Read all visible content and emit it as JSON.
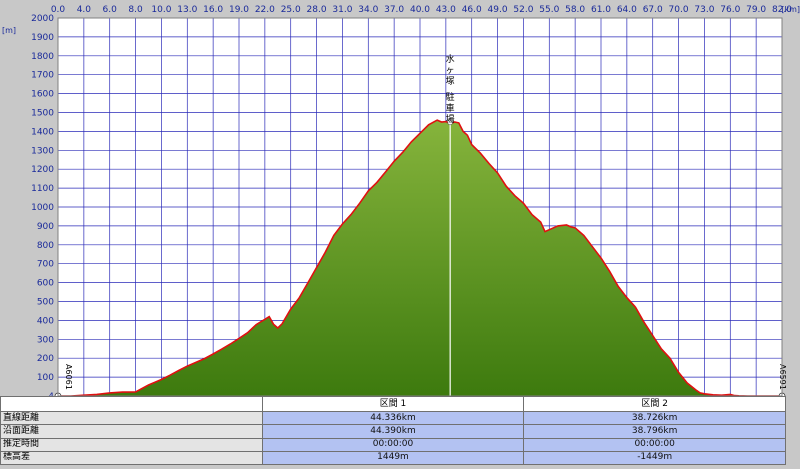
{
  "chart_data": {
    "type": "area",
    "xlim": [
      0,
      82
    ],
    "ylim": [
      4,
      2000
    ],
    "x_ticks": [
      "0.0",
      "4.0",
      "6.0",
      "8.0",
      "10.0",
      "13.0",
      "16.0",
      "19.0",
      "22.0",
      "25.0",
      "28.0",
      "31.0",
      "34.0",
      "37.0",
      "40.0",
      "43.0",
      "46.0",
      "49.0",
      "52.0",
      "55.0",
      "58.0",
      "61.0",
      "64.0",
      "67.0",
      "70.0",
      "73.0",
      "76.0",
      "79.0",
      "82.0"
    ],
    "x_tick_values": [
      0,
      4,
      6,
      8,
      10,
      13,
      16,
      19,
      22,
      25,
      28,
      31,
      34,
      37,
      40,
      43,
      46,
      49,
      52,
      55,
      58,
      61,
      64,
      67,
      70,
      73,
      76,
      79,
      82
    ],
    "x_unit": "[km]",
    "y_ticks": [
      4,
      100,
      200,
      300,
      400,
      500,
      600,
      700,
      800,
      900,
      1000,
      1100,
      1200,
      1300,
      1400,
      1500,
      1600,
      1700,
      1800,
      1900,
      2000
    ],
    "y_unit": "[m]",
    "grid": true,
    "colors": {
      "fill_top": "#7fae34",
      "fill_bottom": "#3f7d10",
      "line": "#e01010",
      "grid": "#2a2ab8",
      "marker": "#ffffff"
    },
    "series": [
      {
        "x": [
          0,
          2,
          4,
          5,
          6,
          7,
          8,
          9,
          10,
          11,
          12,
          13,
          14,
          15,
          16,
          17,
          18,
          19,
          20,
          21,
          22,
          22.5,
          23,
          23.5,
          24,
          25,
          26,
          27,
          28,
          29,
          30,
          31,
          32,
          33,
          34,
          35,
          36,
          37,
          38,
          39,
          40,
          41,
          42,
          42.5,
          43,
          43.5,
          44,
          44.5,
          45,
          45.5,
          46,
          47,
          48,
          49,
          50,
          51,
          52,
          53,
          54,
          54.5,
          55,
          56,
          57,
          57.5,
          58,
          59,
          60,
          61,
          62,
          63,
          64,
          65,
          66,
          67,
          68,
          69,
          70,
          71,
          72,
          72.5,
          73,
          74,
          75,
          76,
          76.5,
          77,
          78,
          79,
          80,
          81,
          82
        ],
        "y": [
          4,
          4,
          8,
          12,
          20,
          24,
          25,
          60,
          88,
          110,
          135,
          158,
          178,
          198,
          222,
          248,
          275,
          305,
          335,
          378,
          406,
          420,
          380,
          360,
          382,
          460,
          520,
          600,
          680,
          760,
          850,
          910,
          960,
          1020,
          1085,
          1130,
          1185,
          1242,
          1290,
          1345,
          1390,
          1435,
          1460,
          1450,
          1452,
          1440,
          1450,
          1445,
          1400,
          1380,
          1330,
          1285,
          1230,
          1180,
          1110,
          1060,
          1020,
          960,
          920,
          870,
          880,
          900,
          905,
          895,
          890,
          850,
          790,
          730,
          660,
          580,
          520,
          470,
          390,
          320,
          250,
          200,
          125,
          70,
          35,
          20,
          15,
          10,
          8,
          12,
          6,
          5,
          4,
          4,
          4,
          4,
          4
        ]
      }
    ],
    "waypoints": [
      {
        "x": 43.5,
        "label": "水ヶ塚駐車場"
      }
    ],
    "start_label": "A6061",
    "end_label": "A6591"
  },
  "table": {
    "sections": [
      "区間 1",
      "区間 2"
    ],
    "rows": [
      {
        "label": "直線距離",
        "values": [
          "44.336km",
          "38.726km"
        ]
      },
      {
        "label": "沿面距離",
        "values": [
          "44.390km",
          "38.796km"
        ]
      },
      {
        "label": "推定時間",
        "values": [
          "00:00:00",
          "00:00:00"
        ]
      },
      {
        "label": "標高差",
        "values": [
          "1449m",
          "-1449m"
        ]
      }
    ]
  }
}
